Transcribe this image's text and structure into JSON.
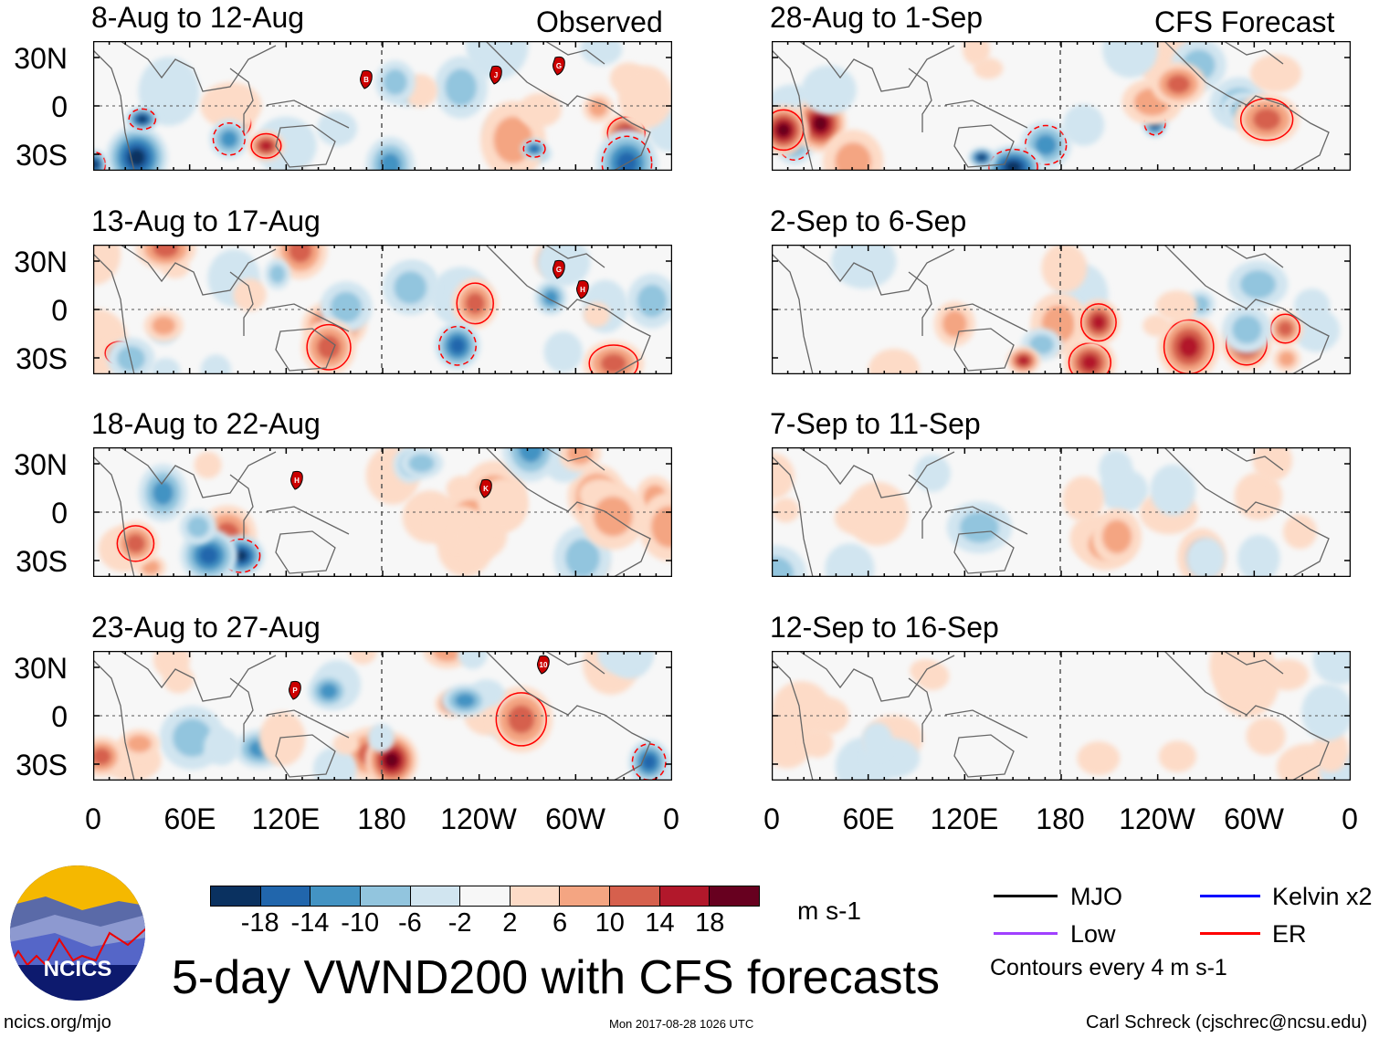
{
  "figure": {
    "title": "5-day VWND200 with CFS forecasts",
    "url": "ncics.org/mjo",
    "timestamp": "Mon 2017-08-28 1026 UTC",
    "author": "Carl Schreck (cjschrec@ncsu.edu)",
    "logo_text": "NCICS",
    "column_labels": {
      "left": "Observed",
      "right": "CFS Forecast"
    }
  },
  "lat_labels": [
    "30N",
    "0",
    "30S"
  ],
  "lon_labels": [
    "0",
    "60E",
    "120E",
    "180",
    "120W",
    "60W",
    "0"
  ],
  "panels": [
    {
      "title": "8-Aug to 12-Aug",
      "storms": [
        "B",
        "J",
        "G"
      ]
    },
    {
      "title": "13-Aug to 17-Aug",
      "storms": [
        "G",
        "H"
      ]
    },
    {
      "title": "18-Aug to 22-Aug",
      "storms": [
        "H",
        "K"
      ]
    },
    {
      "title": "23-Aug to 27-Aug",
      "storms": [
        "P",
        "10"
      ]
    },
    {
      "title": "28-Aug to 1-Sep",
      "storms": []
    },
    {
      "title": "2-Sep to 6-Sep",
      "storms": []
    },
    {
      "title": "7-Sep to 11-Sep",
      "storms": []
    },
    {
      "title": "12-Sep to 16-Sep",
      "storms": []
    }
  ],
  "colorbar": {
    "labels": [
      "-18",
      "-14",
      "-10",
      "-6",
      "-2",
      "2",
      "6",
      "10",
      "14",
      "18"
    ],
    "colors": [
      "#0a3160",
      "#2166ac",
      "#4393c3",
      "#92c5de",
      "#d1e5f0",
      "#f7f7f7",
      "#fddbc7",
      "#f4a582",
      "#d6604d",
      "#b2182b",
      "#67001f"
    ],
    "units": "m s-1"
  },
  "legend": {
    "items": [
      {
        "label": "MJO",
        "color": "#000000"
      },
      {
        "label": "Kelvin x2",
        "color": "#0000ff"
      },
      {
        "label": "Low",
        "color": "#a040ff"
      },
      {
        "label": "ER",
        "color": "#ff0000"
      }
    ],
    "note": "Contours every 4 m s-1"
  }
}
